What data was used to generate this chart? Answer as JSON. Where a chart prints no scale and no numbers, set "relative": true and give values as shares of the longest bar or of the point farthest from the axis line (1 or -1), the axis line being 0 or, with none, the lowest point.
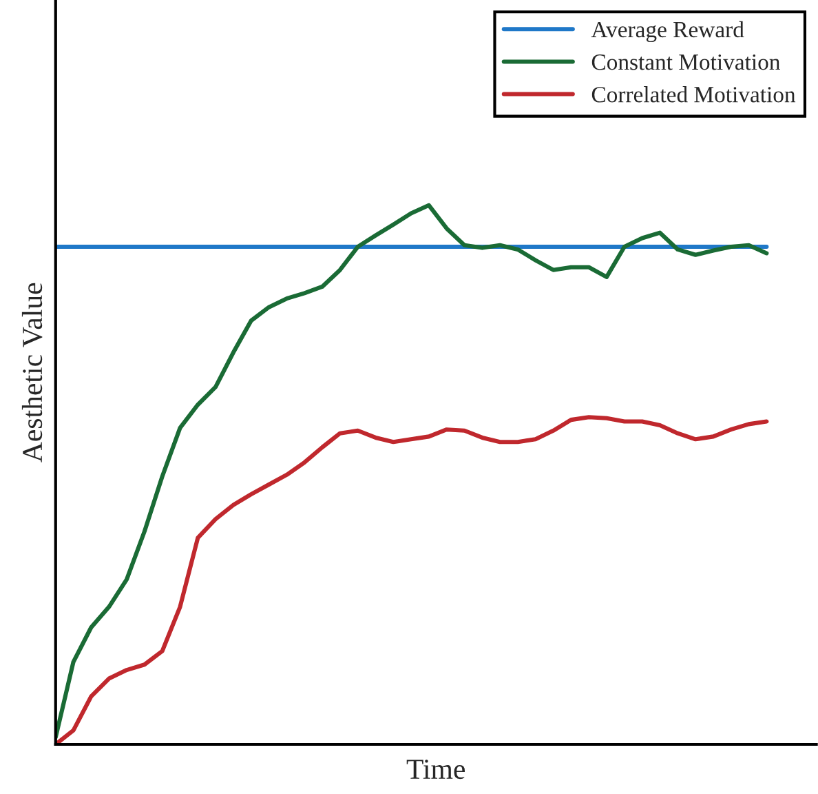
{
  "chart_data": {
    "type": "line",
    "relative": true,
    "xlabel": "Time",
    "ylabel": "Aesthetic Value",
    "legend": "top right",
    "grid": false,
    "marker": "none",
    "line_style": "solid",
    "categories": [
      null,
      null,
      null,
      null,
      null,
      null,
      null,
      null,
      null,
      null,
      null,
      null,
      null,
      null,
      null,
      null,
      null,
      null,
      null,
      null,
      null,
      null,
      null,
      null,
      null,
      null,
      null,
      null,
      null,
      null,
      null,
      null,
      null,
      null,
      null,
      null,
      null,
      null,
      null,
      null,
      null
    ],
    "series": [
      {
        "name": "Average Reward",
        "color": "#1f78c8",
        "values": [
          0.923,
          0.923,
          0.923,
          0.923,
          0.923,
          0.923,
          0.923,
          0.923,
          0.923,
          0.923,
          0.923,
          0.923,
          0.923,
          0.923,
          0.923,
          0.923,
          0.923,
          0.923,
          0.923,
          0.923,
          0.923,
          0.923,
          0.923,
          0.923,
          0.923,
          0.923,
          0.923,
          0.923,
          0.923,
          0.923,
          0.923,
          0.923,
          0.923,
          0.923,
          0.923,
          0.923,
          0.923,
          0.923,
          0.923,
          0.923,
          0.923
        ]
      },
      {
        "name": "Constant Motivation",
        "color": "#1a6b35",
        "values": [
          0.013,
          0.153,
          0.217,
          0.255,
          0.306,
          0.395,
          0.497,
          0.587,
          0.63,
          0.663,
          0.727,
          0.786,
          0.811,
          0.827,
          0.837,
          0.849,
          0.88,
          0.923,
          0.944,
          0.964,
          0.985,
          1.0,
          0.957,
          0.926,
          0.921,
          0.926,
          0.918,
          0.898,
          0.88,
          0.885,
          0.885,
          0.867,
          0.923,
          0.939,
          0.949,
          0.918,
          0.908,
          0.916,
          0.923,
          0.926,
          0.911
        ]
      },
      {
        "name": "Correlated Motivation",
        "color": "#c0282d",
        "values": [
          0.0,
          0.026,
          0.089,
          0.122,
          0.138,
          0.148,
          0.173,
          0.255,
          0.383,
          0.418,
          0.444,
          0.464,
          0.482,
          0.5,
          0.523,
          0.551,
          0.577,
          0.582,
          0.569,
          0.561,
          0.566,
          0.571,
          0.584,
          0.582,
          0.569,
          0.561,
          0.561,
          0.566,
          0.582,
          0.602,
          0.607,
          0.605,
          0.599,
          0.599,
          0.592,
          0.577,
          0.566,
          0.571,
          0.584,
          0.594,
          0.599
        ]
      }
    ]
  }
}
